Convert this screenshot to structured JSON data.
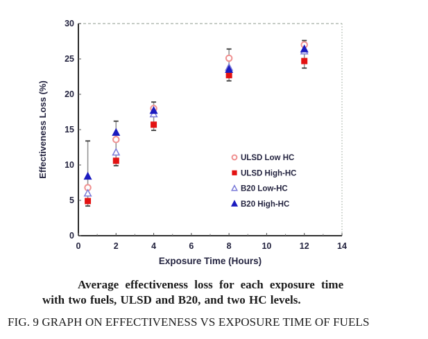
{
  "figure": {
    "caption_line1": "Average effectiveness loss for each exposure time",
    "caption_line2": "with two fuels, ULSD and B20, and two HC levels.",
    "fig_label": "FIG. 9 GRAPH ON EFFECTIVENESS VS EXPOSURE TIME OF FUELS"
  },
  "chart_data": {
    "type": "scatter",
    "title": "",
    "xlabel": "Exposure Time (Hours)",
    "ylabel": "Effectiveness Loss (%)",
    "xlim": [
      0,
      14
    ],
    "ylim": [
      0,
      30
    ],
    "x_ticks": [
      0,
      2,
      4,
      6,
      8,
      10,
      12,
      14
    ],
    "y_ticks": [
      0,
      5,
      10,
      15,
      20,
      25,
      30
    ],
    "grid": false,
    "legend_position": "inside-right-middle",
    "x": [
      0.5,
      2,
      4,
      8,
      12
    ],
    "series": [
      {
        "name": "ULSD Low HC",
        "marker": "circle-open",
        "color": "#ef8f8f",
        "values": [
          6.8,
          13.6,
          18.0,
          25.1,
          27.0
        ]
      },
      {
        "name": "ULSD High-HC",
        "marker": "square-filled",
        "color": "#e31212",
        "values": [
          4.9,
          10.6,
          15.7,
          22.7,
          24.7
        ]
      },
      {
        "name": "B20 Low-HC",
        "marker": "triangle-open",
        "color": "#7b7bd8",
        "values": [
          6.0,
          11.8,
          17.2,
          23.8,
          26.1
        ]
      },
      {
        "name": "B20 High-HC",
        "marker": "triangle-filled",
        "color": "#1b1bbf",
        "values": [
          8.4,
          14.6,
          17.7,
          23.5,
          26.4
        ]
      }
    ],
    "error_bars": [
      {
        "x": 0.5,
        "low": 4.2,
        "high": 13.4
      },
      {
        "x": 2,
        "low": 9.9,
        "high": 16.2
      },
      {
        "x": 4,
        "low": 14.9,
        "high": 18.9
      },
      {
        "x": 8,
        "low": 21.9,
        "high": 26.4
      },
      {
        "x": 12,
        "low": 23.7,
        "high": 27.6
      }
    ],
    "colors": {
      "axis": "#111111",
      "border": "#b3bcb3",
      "error_line": "#8f8f8f",
      "error_cap": "#3a3a3a",
      "tick_text": "#23233f",
      "legend_text": "#23233f"
    }
  }
}
